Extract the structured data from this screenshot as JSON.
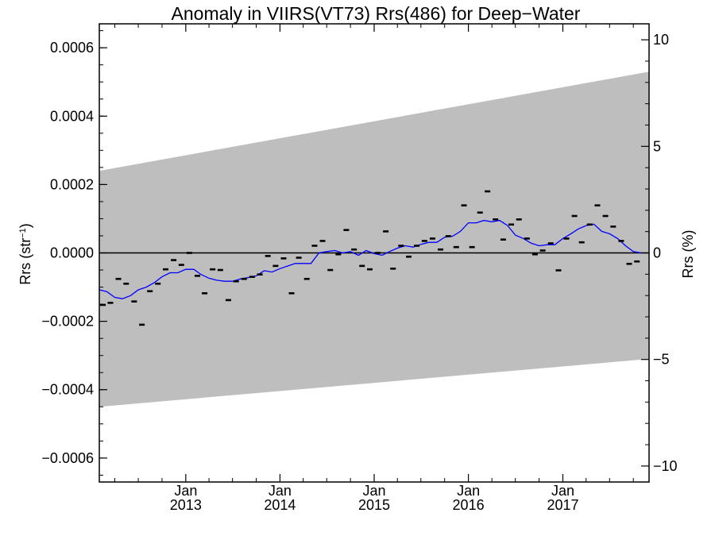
{
  "chart_data": {
    "type": "scatter",
    "title": "Anomaly in VIIRS(VT73) Rrs(486) for Deep−Water",
    "ylabel_left": {
      "base": "Rrs (str",
      "sup": "−1",
      "close": ")"
    },
    "ylabel_right": "Rrs (%)",
    "x_range": [
      "2012-02-01",
      "2017-12-01"
    ],
    "ylim_left": [
      -0.00067,
      0.00067
    ],
    "ylim_right": [
      -10.75,
      10.75
    ],
    "left_ticks": [
      {
        "value": 0.0006,
        "label": "0.0006"
      },
      {
        "value": 0.0004,
        "label": "0.0004"
      },
      {
        "value": 0.0002,
        "label": "0.0002"
      },
      {
        "value": 0.0,
        "label": "0.0000"
      },
      {
        "value": -0.0002,
        "label": "−0.0002"
      },
      {
        "value": -0.0004,
        "label": "−0.0004"
      },
      {
        "value": -0.0006,
        "label": "−0.0006"
      }
    ],
    "right_ticks": [
      {
        "value": 10,
        "label": "10"
      },
      {
        "value": 5,
        "label": "5"
      },
      {
        "value": 0,
        "label": "0"
      },
      {
        "value": -5,
        "label": "−5"
      },
      {
        "value": -10,
        "label": "−10"
      }
    ],
    "x_ticks": [
      {
        "date": "2013-01-01",
        "month": "Jan",
        "year": "2013"
      },
      {
        "date": "2014-01-01",
        "month": "Jan",
        "year": "2014"
      },
      {
        "date": "2015-01-01",
        "month": "Jan",
        "year": "2015"
      },
      {
        "date": "2016-01-01",
        "month": "Jan",
        "year": "2016"
      },
      {
        "date": "2017-01-01",
        "month": "Jan",
        "year": "2017"
      }
    ],
    "band": {
      "start": {
        "date": "2012-02-01",
        "upper": 0.00024,
        "lower": -0.00045
      },
      "end": {
        "date": "2017-12-01",
        "upper": 0.00053,
        "lower": -0.00031
      },
      "color": "#bebebe"
    },
    "points": [
      {
        "x": "2012-02",
        "y": -0.000152
      },
      {
        "x": "2012-03",
        "y": -0.000146
      },
      {
        "x": "2012-04",
        "y": -7.6e-05
      },
      {
        "x": "2012-05",
        "y": -9e-05
      },
      {
        "x": "2012-06",
        "y": -0.000142
      },
      {
        "x": "2012-07",
        "y": -0.00021
      },
      {
        "x": "2012-08",
        "y": -0.000112
      },
      {
        "x": "2012-09",
        "y": -9e-05
      },
      {
        "x": "2012-10",
        "y": -4.8e-05
      },
      {
        "x": "2012-11",
        "y": -2.1e-05
      },
      {
        "x": "2012-12",
        "y": -3.5e-05
      },
      {
        "x": "2013-01",
        "y": 0.0
      },
      {
        "x": "2013-02",
        "y": -6.7e-05
      },
      {
        "x": "2013-03",
        "y": -0.000118
      },
      {
        "x": "2013-04",
        "y": -4.8e-05
      },
      {
        "x": "2013-05",
        "y": -5e-05
      },
      {
        "x": "2013-06",
        "y": -0.000138
      },
      {
        "x": "2013-07",
        "y": -8.3e-05
      },
      {
        "x": "2013-08",
        "y": -7.6e-05
      },
      {
        "x": "2013-09",
        "y": -7e-05
      },
      {
        "x": "2013-10",
        "y": -6.3e-05
      },
      {
        "x": "2013-11",
        "y": -9e-06
      },
      {
        "x": "2013-12",
        "y": -3.8e-05
      },
      {
        "x": "2014-01",
        "y": -1.6e-05
      },
      {
        "x": "2014-02",
        "y": -0.000118
      },
      {
        "x": "2014-03",
        "y": -1.4e-05
      },
      {
        "x": "2014-04",
        "y": -7.6e-05
      },
      {
        "x": "2014-05",
        "y": 2.1e-05
      },
      {
        "x": "2014-06",
        "y": 3.5e-05
      },
      {
        "x": "2014-07",
        "y": -5e-05
      },
      {
        "x": "2014-08",
        "y": -4e-06
      },
      {
        "x": "2014-09",
        "y": 6.7e-05
      },
      {
        "x": "2014-10",
        "y": 1e-05
      },
      {
        "x": "2014-11",
        "y": -3.8e-05
      },
      {
        "x": "2014-12",
        "y": -4.8e-05
      },
      {
        "x": "2015-01",
        "y": 0.0
      },
      {
        "x": "2015-02",
        "y": 6.3e-05
      },
      {
        "x": "2015-03",
        "y": -4.6e-05
      },
      {
        "x": "2015-04",
        "y": 2.1e-05
      },
      {
        "x": "2015-05",
        "y": -1.1e-05
      },
      {
        "x": "2015-06",
        "y": 2.1e-05
      },
      {
        "x": "2015-07",
        "y": 3.5e-05
      },
      {
        "x": "2015-08",
        "y": 4.2e-05
      },
      {
        "x": "2015-09",
        "y": 1e-05
      },
      {
        "x": "2015-10",
        "y": 4.9e-05
      },
      {
        "x": "2015-11",
        "y": 1.7e-05
      },
      {
        "x": "2015-12",
        "y": 0.000139
      },
      {
        "x": "2016-01",
        "y": 1.7e-05
      },
      {
        "x": "2016-02",
        "y": 0.000118
      },
      {
        "x": "2016-03",
        "y": 0.00018
      },
      {
        "x": "2016-04",
        "y": 9.8e-05
      },
      {
        "x": "2016-05",
        "y": 3.9e-05
      },
      {
        "x": "2016-06",
        "y": 8.3e-05
      },
      {
        "x": "2016-07",
        "y": 9.8e-05
      },
      {
        "x": "2016-08",
        "y": 4.2e-05
      },
      {
        "x": "2016-09",
        "y": -4e-06
      },
      {
        "x": "2016-10",
        "y": 7e-06
      },
      {
        "x": "2016-11",
        "y": 2.8e-05
      },
      {
        "x": "2016-12",
        "y": -5.1e-05
      },
      {
        "x": "2017-01",
        "y": 4.2e-05
      },
      {
        "x": "2017-02",
        "y": 0.000108
      },
      {
        "x": "2017-03",
        "y": 3.1e-05
      },
      {
        "x": "2017-04",
        "y": 8.3e-05
      },
      {
        "x": "2017-05",
        "y": 0.000139
      },
      {
        "x": "2017-06",
        "y": 0.000108
      },
      {
        "x": "2017-07",
        "y": 7.7e-05
      },
      {
        "x": "2017-08",
        "y": 3.5e-05
      },
      {
        "x": "2017-09",
        "y": -3.2e-05
      },
      {
        "x": "2017-10",
        "y": -2.5e-05
      }
    ],
    "smoothed": {
      "color": "#0000ff",
      "points": [
        {
          "x": "2012-02-01",
          "y": -0.000108
        },
        {
          "x": "2012-03-01",
          "y": -0.000113
        },
        {
          "x": "2012-04-01",
          "y": -0.00013
        },
        {
          "x": "2012-05-01",
          "y": -0.000134
        },
        {
          "x": "2012-06-01",
          "y": -0.000125
        },
        {
          "x": "2012-07-01",
          "y": -0.000108
        },
        {
          "x": "2012-08-01",
          "y": -0.0001
        },
        {
          "x": "2012-09-01",
          "y": -8.7e-05
        },
        {
          "x": "2012-10-01",
          "y": -7e-05
        },
        {
          "x": "2012-11-01",
          "y": -5.8e-05
        },
        {
          "x": "2012-12-01",
          "y": -5.8e-05
        },
        {
          "x": "2013-01-01",
          "y": -4.8e-05
        },
        {
          "x": "2013-02-01",
          "y": -4.8e-05
        },
        {
          "x": "2013-03-01",
          "y": -6.3e-05
        },
        {
          "x": "2013-04-01",
          "y": -7.4e-05
        },
        {
          "x": "2013-05-01",
          "y": -8e-05
        },
        {
          "x": "2013-06-01",
          "y": -8.3e-05
        },
        {
          "x": "2013-07-01",
          "y": -8.3e-05
        },
        {
          "x": "2013-08-01",
          "y": -7.6e-05
        },
        {
          "x": "2013-09-01",
          "y": -7.2e-05
        },
        {
          "x": "2013-10-01",
          "y": -6.7e-05
        },
        {
          "x": "2013-11-01",
          "y": -5.2e-05
        },
        {
          "x": "2013-12-01",
          "y": -5.6e-05
        },
        {
          "x": "2014-01-01",
          "y": -4.6e-05
        },
        {
          "x": "2014-02-01",
          "y": -3.8e-05
        },
        {
          "x": "2014-03-01",
          "y": -3.1e-05
        },
        {
          "x": "2014-04-01",
          "y": -3.1e-05
        },
        {
          "x": "2014-05-01",
          "y": -3.1e-05
        },
        {
          "x": "2014-06-01",
          "y": 0.0
        },
        {
          "x": "2014-07-01",
          "y": 4e-06
        },
        {
          "x": "2014-08-01",
          "y": 7e-06
        },
        {
          "x": "2014-09-01",
          "y": 0.0
        },
        {
          "x": "2014-10-01",
          "y": 4e-06
        },
        {
          "x": "2014-11-01",
          "y": -7e-06
        },
        {
          "x": "2014-12-01",
          "y": 7e-06
        },
        {
          "x": "2015-01-01",
          "y": -2e-06
        },
        {
          "x": "2015-02-01",
          "y": -7e-06
        },
        {
          "x": "2015-03-01",
          "y": 4e-06
        },
        {
          "x": "2015-04-01",
          "y": 1.4e-05
        },
        {
          "x": "2015-05-01",
          "y": 2.1e-05
        },
        {
          "x": "2015-06-01",
          "y": 1.7e-05
        },
        {
          "x": "2015-07-01",
          "y": 2.5e-05
        },
        {
          "x": "2015-08-01",
          "y": 3.1e-05
        },
        {
          "x": "2015-09-01",
          "y": 3.1e-05
        },
        {
          "x": "2015-10-01",
          "y": 4.6e-05
        },
        {
          "x": "2015-11-01",
          "y": 4.9e-05
        },
        {
          "x": "2015-12-01",
          "y": 6.3e-05
        },
        {
          "x": "2016-01-01",
          "y": 8.8e-05
        },
        {
          "x": "2016-02-01",
          "y": 8.8e-05
        },
        {
          "x": "2016-03-01",
          "y": 9.5e-05
        },
        {
          "x": "2016-04-01",
          "y": 9.1e-05
        },
        {
          "x": "2016-05-01",
          "y": 9.5e-05
        },
        {
          "x": "2016-06-01",
          "y": 8e-05
        },
        {
          "x": "2016-07-01",
          "y": 5.2e-05
        },
        {
          "x": "2016-08-01",
          "y": 4.2e-05
        },
        {
          "x": "2016-09-01",
          "y": 2.8e-05
        },
        {
          "x": "2016-10-01",
          "y": 2.1e-05
        },
        {
          "x": "2016-11-01",
          "y": 2.4e-05
        },
        {
          "x": "2016-12-01",
          "y": 2.4e-05
        },
        {
          "x": "2017-01-01",
          "y": 4.2e-05
        },
        {
          "x": "2017-02-01",
          "y": 5.6e-05
        },
        {
          "x": "2017-03-01",
          "y": 7e-05
        },
        {
          "x": "2017-04-01",
          "y": 8e-05
        },
        {
          "x": "2017-05-01",
          "y": 8.4e-05
        },
        {
          "x": "2017-06-01",
          "y": 6.3e-05
        },
        {
          "x": "2017-07-01",
          "y": 5.6e-05
        },
        {
          "x": "2017-08-01",
          "y": 4.2e-05
        },
        {
          "x": "2017-09-01",
          "y": 2.1e-05
        },
        {
          "x": "2017-10-01",
          "y": 4e-06
        },
        {
          "x": "2017-11-01",
          "y": 0.0
        }
      ]
    },
    "zero_line": true,
    "grid": false,
    "legend": "none"
  }
}
